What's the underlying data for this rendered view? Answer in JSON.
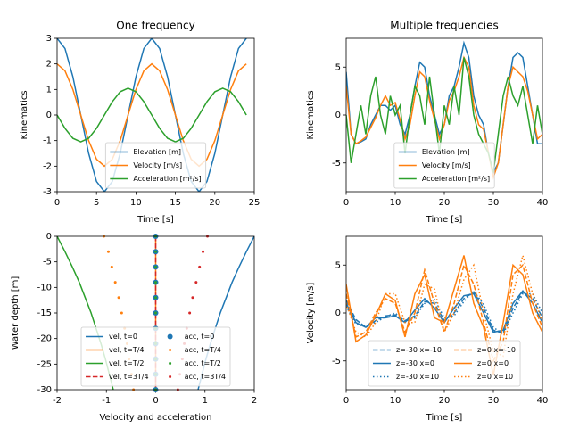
{
  "chart_data": [
    {
      "type": "line",
      "title": "One frequency",
      "x_label": "Time [s]",
      "y_label": "Kinematics",
      "x": [
        0,
        1,
        2,
        3,
        4,
        5,
        6,
        7,
        8,
        9,
        10,
        11,
        12,
        13,
        14,
        15,
        16,
        17,
        18,
        19,
        20,
        21,
        22,
        23,
        24
      ],
      "series": [
        {
          "name": "Elevation [m]",
          "color": "#1f77b4",
          "style": "solid",
          "values": [
            3,
            2.6,
            1.5,
            0,
            -1.5,
            -2.6,
            -3,
            -2.6,
            -1.5,
            0,
            1.5,
            2.6,
            3,
            2.6,
            1.5,
            0,
            -1.5,
            -2.6,
            -3,
            -2.6,
            -1.5,
            0,
            1.5,
            2.6,
            3
          ]
        },
        {
          "name": "Velocity [m/s]",
          "color": "#ff7f0e",
          "style": "solid",
          "values": [
            2,
            1.73,
            1,
            0,
            -1,
            -1.73,
            -2,
            -1.73,
            -1,
            0,
            1,
            1.73,
            2,
            1.73,
            1,
            0,
            -1,
            -1.73,
            -2,
            -1.73,
            -1,
            0,
            1,
            1.73,
            2
          ]
        },
        {
          "name": "Acceleration [m²/s]",
          "color": "#2ca02c",
          "style": "solid",
          "values": [
            0,
            -0.52,
            -0.91,
            -1.05,
            -0.91,
            -0.52,
            0,
            0.52,
            0.91,
            1.05,
            0.91,
            0.52,
            0,
            -0.52,
            -0.91,
            -1.05,
            -0.91,
            -0.52,
            0,
            0.52,
            0.91,
            1.05,
            0.91,
            0.52,
            0
          ]
        }
      ],
      "xlim": [
        0,
        25
      ],
      "xticks": [
        0,
        5,
        10,
        15,
        20,
        25
      ],
      "ylim": [
        -3,
        3
      ],
      "yticks": [
        -3,
        -2,
        -1,
        0,
        1,
        2,
        3
      ],
      "legend": "lower center",
      "legend_columns": 1
    },
    {
      "type": "line",
      "title": "Multiple frequencies",
      "x_label": "Time [s]",
      "y_label": "Kinematics",
      "x": [
        0,
        1,
        2,
        3,
        4,
        5,
        6,
        7,
        8,
        9,
        10,
        11,
        12,
        13,
        14,
        15,
        16,
        17,
        18,
        19,
        20,
        21,
        22,
        23,
        24,
        25,
        26,
        27,
        28,
        29,
        30,
        31,
        32,
        33,
        34,
        35,
        36,
        37,
        38,
        39,
        40
      ],
      "series": [
        {
          "name": "Elevation [m]",
          "color": "#1f77b4",
          "style": "solid",
          "values": [
            4.5,
            -2,
            -3,
            -2.8,
            -2.5,
            -1,
            0,
            1,
            1,
            0.5,
            1,
            -1,
            -2,
            0,
            3,
            5.5,
            5,
            2,
            0,
            -2,
            -1,
            2,
            3,
            5,
            7.5,
            6,
            2,
            0,
            -1,
            -4,
            -6,
            -5,
            -1,
            3,
            6,
            6.5,
            6,
            3,
            0,
            -3,
            -3
          ]
        },
        {
          "name": "Velocity [m/s]",
          "color": "#ff7f0e",
          "style": "solid",
          "values": [
            3,
            -2,
            -3,
            -2.7,
            -2.3,
            -1.3,
            -0.3,
            1,
            2,
            1,
            1.3,
            -0.5,
            -2.5,
            -1,
            2,
            4.5,
            4,
            1.5,
            -0.5,
            -2.5,
            -1,
            1.5,
            2.5,
            4,
            6,
            5,
            1,
            -1,
            -1.5,
            -4,
            -6.5,
            -5,
            -1,
            3,
            5,
            4.5,
            4,
            2.5,
            0,
            -2.5,
            -2
          ]
        },
        {
          "name": "Acceleration [m²/s]",
          "color": "#2ca02c",
          "style": "solid",
          "values": [
            0,
            -5,
            -2,
            1,
            -2,
            2,
            4,
            0,
            -2,
            2,
            0,
            1,
            -4,
            0,
            3,
            2,
            -1,
            4,
            0,
            -4,
            1,
            -1,
            3,
            0,
            6,
            4,
            0,
            -2,
            -3,
            -4,
            -6,
            -2,
            2,
            4,
            2,
            1,
            3,
            0,
            -3,
            1,
            -2
          ]
        }
      ],
      "xlim": [
        0,
        40
      ],
      "xticks": [
        0,
        10,
        20,
        30,
        40
      ],
      "ylim": [
        -8,
        8
      ],
      "yticks": [
        -5,
        0,
        5
      ],
      "legend": "lower center",
      "legend_columns": 1
    },
    {
      "type": "profile",
      "x_label": "Velocity and acceleration",
      "y_label": "Water depth [m]",
      "series": [
        {
          "name": "vel, t=0",
          "color": "#1f77b4",
          "style": "solid",
          "values": [
            2,
            1.84,
            1.69,
            1.55,
            1.43,
            1.31,
            1.21,
            1.11,
            1.02,
            0.94,
            0.86
          ],
          "depth": [
            0,
            -3,
            -6,
            -9,
            -12,
            -15,
            -18,
            -21,
            -24,
            -27,
            -30
          ]
        },
        {
          "name": "vel, t=T/4",
          "color": "#ff7f0e",
          "style": "solid",
          "values": [
            0,
            0
          ],
          "depth": [
            0,
            -30
          ]
        },
        {
          "name": "vel, t=T/2",
          "color": "#2ca02c",
          "style": "solid",
          "values": [
            -2,
            -1.84,
            -1.69,
            -1.55,
            -1.43,
            -1.31,
            -1.21,
            -1.11,
            -1.02,
            -0.94,
            -0.86
          ],
          "depth": [
            0,
            -3,
            -6,
            -9,
            -12,
            -15,
            -18,
            -21,
            -24,
            -27,
            -30
          ]
        },
        {
          "name": "vel, t=3T/4",
          "color": "#d62728",
          "style": "dashed",
          "values": [
            0,
            0
          ],
          "depth": [
            0,
            -30
          ]
        },
        {
          "name": "acc, t=0",
          "color": "#1f77b4",
          "style": "marker",
          "markersize": 6,
          "values": [
            0,
            0,
            0,
            0,
            0,
            0,
            0,
            0,
            0,
            0,
            0
          ],
          "depth": [
            0,
            -3,
            -6,
            -9,
            -12,
            -15,
            -18,
            -21,
            -24,
            -27,
            -30
          ]
        },
        {
          "name": "acc, t=T/4",
          "color": "#ff7f0e",
          "style": "marker",
          "markersize": 3,
          "values": [
            -1.05,
            -0.96,
            -0.89,
            -0.82,
            -0.75,
            -0.69,
            -0.63,
            -0.58,
            -0.54,
            -0.49,
            -0.45
          ],
          "depth": [
            0,
            -3,
            -6,
            -9,
            -12,
            -15,
            -18,
            -21,
            -24,
            -27,
            -30
          ]
        },
        {
          "name": "acc, t=T/2",
          "color": "#2ca02c",
          "style": "marker",
          "markersize": 3,
          "values": [
            0,
            0,
            0,
            0,
            0,
            0,
            0,
            0,
            0,
            0,
            0
          ],
          "depth": [
            0,
            -3,
            -6,
            -9,
            -12,
            -15,
            -18,
            -21,
            -24,
            -27,
            -30
          ]
        },
        {
          "name": "acc, t=3T/4",
          "color": "#d62728",
          "style": "marker",
          "markersize": 3,
          "values": [
            1.05,
            0.96,
            0.89,
            0.82,
            0.75,
            0.69,
            0.63,
            0.58,
            0.54,
            0.49,
            0.45
          ],
          "depth": [
            0,
            -3,
            -6,
            -9,
            -12,
            -15,
            -18,
            -21,
            -24,
            -27,
            -30
          ]
        }
      ],
      "xlim": [
        -2,
        2
      ],
      "xticks": [
        -2,
        -1,
        0,
        1,
        2
      ],
      "ylim": [
        -30,
        0
      ],
      "yticks": [
        -30,
        -25,
        -20,
        -15,
        -10,
        -5,
        0
      ],
      "legend": "lower center",
      "legend_columns": 2
    },
    {
      "type": "line",
      "x_label": "Time [s]",
      "y_label": "Velocity [m/s]",
      "x": [
        0,
        2,
        4,
        6,
        8,
        10,
        12,
        14,
        16,
        18,
        20,
        22,
        24,
        26,
        28,
        30,
        32,
        34,
        36,
        38,
        40
      ],
      "series": [
        {
          "name": "z=-30 x=-10",
          "color": "#1f77b4",
          "style": "dashed",
          "values": [
            1.3,
            -0.7,
            -1.5,
            -0.8,
            -0.3,
            -0.2,
            -0.8,
            -0.3,
            1.2,
            1,
            -0.8,
            0,
            1.5,
            2.2,
            0.5,
            -1.8,
            -2.1,
            0.5,
            2.2,
            1.5,
            -0.5
          ]
        },
        {
          "name": "z=-30 x=0",
          "color": "#1f77b4",
          "style": "solid",
          "values": [
            1,
            -1,
            -1.5,
            -0.5,
            -0.5,
            -0.3,
            -1,
            0.3,
            1.5,
            0.5,
            -1,
            0.5,
            1.8,
            2,
            0,
            -2,
            -1.8,
            1,
            2.3,
            1,
            -1
          ]
        },
        {
          "name": "z=-30 x=10",
          "color": "#1f77b4",
          "style": "dotted",
          "values": [
            0.7,
            -1.2,
            -1.4,
            -1,
            -0.4,
            0,
            -0.9,
            -0.5,
            1,
            1.4,
            -0.5,
            -0.3,
            1.2,
            2.3,
            0.9,
            -1.5,
            -2.2,
            0,
            2,
            2,
            0
          ]
        },
        {
          "name": "z=0 x=-10",
          "color": "#ff7f0e",
          "style": "dashed",
          "values": [
            2,
            -2.5,
            -2,
            0,
            1.5,
            1,
            -2,
            0,
            4.5,
            1,
            -2,
            1,
            5,
            3,
            -1,
            -5,
            -3,
            4,
            5,
            1,
            -1.5
          ]
        },
        {
          "name": "z=0 x=0",
          "color": "#ff7f0e",
          "style": "solid",
          "values": [
            3,
            -3,
            -2.3,
            -0.3,
            2,
            1.3,
            -2.5,
            2,
            4,
            -0.5,
            -1,
            2.5,
            6,
            1,
            -1.5,
            -6.5,
            -1,
            5,
            4,
            0,
            -2
          ]
        },
        {
          "name": "z=0 x=10",
          "color": "#ff7f0e",
          "style": "dotted",
          "values": [
            1,
            -2,
            -2.5,
            -1,
            2,
            2,
            -1,
            -1,
            3,
            2.5,
            -2,
            0,
            3.5,
            5,
            0,
            -4,
            -4.5,
            2,
            6,
            2,
            -1
          ]
        }
      ],
      "xlim": [
        0,
        40
      ],
      "xticks": [
        0,
        10,
        20,
        30,
        40
      ],
      "ylim": [
        -8,
        8
      ],
      "yticks": [
        -5,
        0,
        5
      ],
      "legend": "lower center",
      "legend_columns": 2
    }
  ]
}
